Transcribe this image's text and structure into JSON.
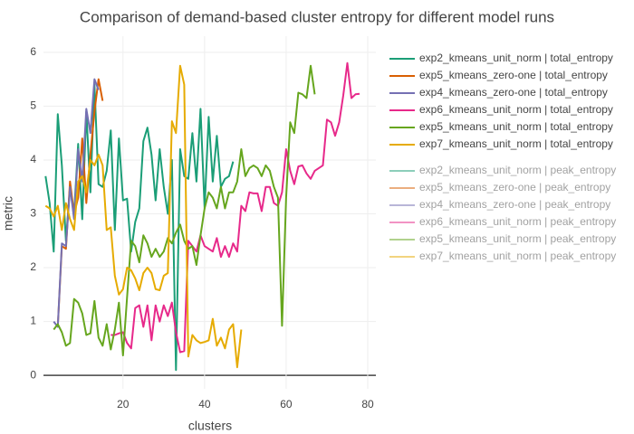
{
  "chart_data": {
    "type": "line",
    "title": "Comparison of demand-based cluster entropy for different model runs",
    "x_label": "clusters",
    "y_label": "metric",
    "xlim": [
      0.5,
      82
    ],
    "ylim": [
      -0.25,
      6.3
    ],
    "xticks": [
      20,
      40,
      60,
      80
    ],
    "yticks": [
      0,
      1,
      2,
      3,
      4,
      5,
      6
    ],
    "grid": true,
    "legend": "right",
    "series": [
      {
        "name": "exp2_kmeans_unit_norm | total_entropy",
        "color": "#1b9e77",
        "x": [
          1,
          2,
          3,
          4,
          5,
          6,
          7,
          8,
          9,
          10,
          11,
          12,
          13,
          14,
          15,
          16,
          17,
          18,
          19,
          20,
          21,
          22,
          23,
          24,
          25,
          26,
          27,
          28,
          29,
          30,
          31,
          32,
          33,
          34,
          35,
          36,
          37,
          38,
          39,
          40,
          41,
          42,
          43,
          44,
          45,
          46,
          47
        ],
        "values": [
          3.7,
          3.2,
          2.3,
          4.85,
          3.9,
          2.5,
          3.5,
          3.0,
          4.3,
          2.9,
          4.9,
          3.4,
          5.4,
          3.55,
          3.5,
          3.8,
          4.55,
          2.7,
          4.4,
          3.25,
          3.28,
          2.3,
          2.85,
          3.1,
          4.35,
          4.6,
          4.1,
          3.25,
          4.2,
          3.5,
          3.0,
          4.0,
          0.1,
          4.2,
          3.7,
          3.65,
          4.5,
          3.6,
          4.95,
          3.1,
          4.8,
          3.6,
          4.45,
          3.5,
          3.65,
          3.7,
          3.97
        ]
      },
      {
        "name": "exp5_kmeans_zero-one | total_entropy",
        "color": "#d95f02",
        "x": [
          4,
          5,
          6,
          7,
          8,
          9,
          10,
          11,
          12,
          13,
          14,
          15
        ],
        "values": [
          0.9,
          2.4,
          2.35,
          3.6,
          3.0,
          3.3,
          4.4,
          3.2,
          4.1,
          4.9,
          5.5,
          5.1
        ]
      },
      {
        "name": "exp4_kmeans_zero-one | total_entropy",
        "color": "#7570b3",
        "x": [
          3,
          4,
          5,
          6,
          7,
          8,
          9,
          10,
          11,
          12,
          13,
          14
        ],
        "values": [
          1.0,
          0.9,
          2.45,
          2.4,
          3.5,
          2.9,
          4.2,
          3.6,
          4.95,
          4.5,
          5.5,
          5.3
        ]
      },
      {
        "name": "exp6_kmeans_unit_norm | total_entropy",
        "color": "#e7298a",
        "x": [
          17,
          18,
          19,
          20,
          21,
          22,
          23,
          24,
          25,
          26,
          27,
          28,
          29,
          30,
          31,
          32,
          33,
          34,
          35,
          36,
          37,
          38,
          39,
          40,
          41,
          42,
          43,
          44,
          45,
          46,
          47,
          48,
          49,
          50,
          51,
          52,
          53,
          54,
          55,
          56,
          57,
          58,
          59,
          60,
          61,
          62,
          63,
          64,
          65,
          66,
          67,
          68,
          69,
          70,
          71,
          72,
          73,
          74,
          75,
          76,
          77,
          78
        ],
        "values": [
          0.75,
          0.75,
          0.78,
          0.8,
          0.6,
          0.5,
          1.25,
          1.3,
          0.9,
          1.3,
          0.65,
          1.3,
          1.0,
          1.3,
          1.1,
          1.35,
          0.8,
          0.43,
          0.45,
          2.5,
          2.4,
          2.3,
          2.6,
          2.4,
          2.35,
          2.3,
          2.55,
          2.2,
          2.4,
          2.2,
          2.45,
          2.3,
          3.15,
          3.05,
          3.4,
          3.38,
          3.38,
          3.05,
          3.5,
          3.5,
          3.2,
          3.15,
          3.4,
          4.2,
          3.8,
          3.55,
          3.88,
          3.9,
          3.75,
          3.65,
          3.8,
          3.85,
          3.9,
          4.75,
          4.7,
          4.45,
          4.7,
          5.2,
          5.8,
          5.15,
          5.22,
          5.23
        ]
      },
      {
        "name": "exp5_kmeans_unit_norm | total_entropy",
        "color": "#66a61e",
        "x": [
          3,
          4,
          5,
          6,
          7,
          8,
          9,
          10,
          11,
          12,
          13,
          14,
          15,
          16,
          17,
          18,
          19,
          20,
          21,
          22,
          23,
          24,
          25,
          26,
          27,
          28,
          29,
          30,
          31,
          32,
          33,
          34,
          35,
          36,
          37,
          38,
          39,
          40,
          41,
          42,
          43,
          44,
          45,
          46,
          47,
          48,
          49,
          50,
          51,
          52,
          53,
          54,
          55,
          56,
          57,
          58,
          59,
          60,
          61,
          62,
          63,
          64,
          65,
          66,
          67
        ],
        "values": [
          0.85,
          0.95,
          0.8,
          0.55,
          0.6,
          1.42,
          1.35,
          1.15,
          0.75,
          0.78,
          1.38,
          0.7,
          0.55,
          0.95,
          0.48,
          0.85,
          1.35,
          0.37,
          1.45,
          2.5,
          2.4,
          2.1,
          2.6,
          2.45,
          2.2,
          2.35,
          2.2,
          2.3,
          2.55,
          2.45,
          2.65,
          2.8,
          2.5,
          2.35,
          2.4,
          2.05,
          2.6,
          3.1,
          3.4,
          3.3,
          3.1,
          3.5,
          3.1,
          3.4,
          3.4,
          3.6,
          4.2,
          3.7,
          3.85,
          3.9,
          3.85,
          3.7,
          3.9,
          3.8,
          3.5,
          3.3,
          0.92,
          3.3,
          4.7,
          4.5,
          5.25,
          5.22,
          5.15,
          5.75,
          5.22
        ]
      },
      {
        "name": "exp7_kmeans_unit_norm | total_entropy",
        "color": "#e6ab02",
        "x": [
          1,
          2,
          3,
          4,
          5,
          6,
          7,
          8,
          9,
          10,
          11,
          12,
          13,
          14,
          15,
          16,
          17,
          18,
          19,
          20,
          21,
          22,
          23,
          24,
          25,
          26,
          27,
          28,
          29,
          30,
          31,
          32,
          33,
          34,
          35,
          36,
          37,
          38,
          39,
          40,
          41,
          42,
          43,
          44,
          45,
          46,
          47,
          48,
          49
        ],
        "values": [
          3.15,
          3.1,
          2.95,
          3.15,
          2.7,
          3.2,
          2.9,
          2.7,
          3.6,
          3.7,
          3.4,
          4.0,
          3.9,
          4.1,
          3.9,
          2.7,
          2.75,
          1.85,
          1.5,
          1.6,
          2.0,
          1.95,
          1.8,
          1.58,
          1.9,
          2.0,
          1.9,
          1.6,
          1.58,
          1.85,
          1.9,
          4.72,
          4.5,
          5.75,
          5.4,
          0.35,
          0.75,
          0.65,
          0.6,
          0.62,
          0.65,
          1.05,
          0.55,
          0.7,
          0.5,
          0.85,
          0.95,
          0.15,
          0.85
        ]
      },
      {
        "name": "exp2_kmeans_unit_norm | peak_entropy",
        "color": "#1b9e77",
        "visible": "legendonly"
      },
      {
        "name": "exp5_kmeans_zero-one | peak_entropy",
        "color": "#d95f02",
        "visible": "legendonly"
      },
      {
        "name": "exp4_kmeans_zero-one | peak_entropy",
        "color": "#7570b3",
        "visible": "legendonly"
      },
      {
        "name": "exp6_kmeans_unit_norm | peak_entropy",
        "color": "#e7298a",
        "visible": "legendonly"
      },
      {
        "name": "exp5_kmeans_unit_norm | peak_entropy",
        "color": "#66a61e",
        "visible": "legendonly"
      },
      {
        "name": "exp7_kmeans_unit_norm | peak_entropy",
        "color": "#e6ab02",
        "visible": "legendonly"
      }
    ]
  }
}
